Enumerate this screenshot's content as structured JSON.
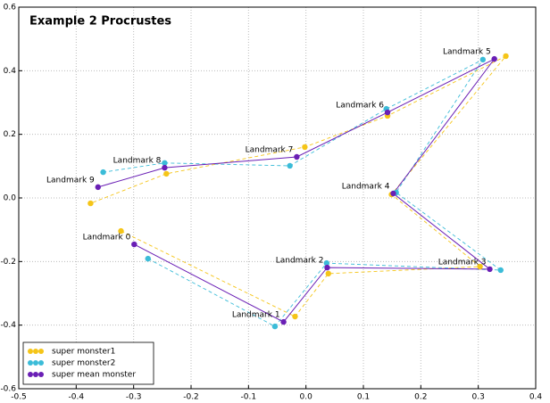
{
  "chart_data": {
    "type": "line",
    "title": "Example 2 Procrustes",
    "xlim": [
      -0.5,
      0.4
    ],
    "ylim": [
      -0.6,
      0.6
    ],
    "xticks": [
      -0.5,
      -0.4,
      -0.3,
      -0.2,
      -0.1,
      {
        "value": 0,
        "label": "0.0"
      },
      0.1,
      0.2,
      0.3,
      0.4
    ],
    "yticks": [
      -0.6,
      -0.4,
      -0.2,
      {
        "value": 0,
        "label": "0.0"
      },
      0.2,
      0.4,
      0.6
    ],
    "grid": true,
    "legend": "lower left",
    "point_labels": [
      "Landmark 0",
      "Landmark 1",
      "Landmark 2",
      "Landmark 3",
      "Landmark 4",
      "Landmark 5",
      "Landmark 6",
      "Landmark 7",
      "Landmark 8",
      "Landmark 9"
    ],
    "series": [
      {
        "name": "super monster1",
        "color": "#f5c518",
        "linestyle": "dashed",
        "x": [
          -0.322,
          -0.019,
          0.039,
          0.303,
          0.149,
          0.348,
          0.142,
          -0.002,
          -0.243,
          -0.375
        ],
        "values": [
          -0.104,
          -0.373,
          -0.238,
          -0.216,
          0.011,
          0.446,
          0.258,
          0.16,
          0.076,
          -0.017
        ]
      },
      {
        "name": "super monster2",
        "color": "#3bbcd8",
        "linestyle": "dashed",
        "x": [
          -0.275,
          -0.054,
          0.036,
          0.339,
          0.157,
          0.308,
          0.14,
          -0.028,
          -0.246,
          -0.353
        ],
        "values": [
          -0.191,
          -0.404,
          -0.205,
          -0.227,
          0.017,
          0.435,
          0.28,
          0.101,
          0.11,
          0.081
        ]
      },
      {
        "name": "super mean monster",
        "color": "#6a1fb5",
        "linestyle": "solid",
        "x": [
          -0.299,
          -0.039,
          0.037,
          0.32,
          0.152,
          0.328,
          0.142,
          -0.016,
          -0.246,
          -0.362
        ],
        "values": [
          -0.146,
          -0.39,
          -0.219,
          -0.224,
          0.014,
          0.437,
          0.269,
          0.129,
          0.095,
          0.034
        ]
      }
    ]
  }
}
